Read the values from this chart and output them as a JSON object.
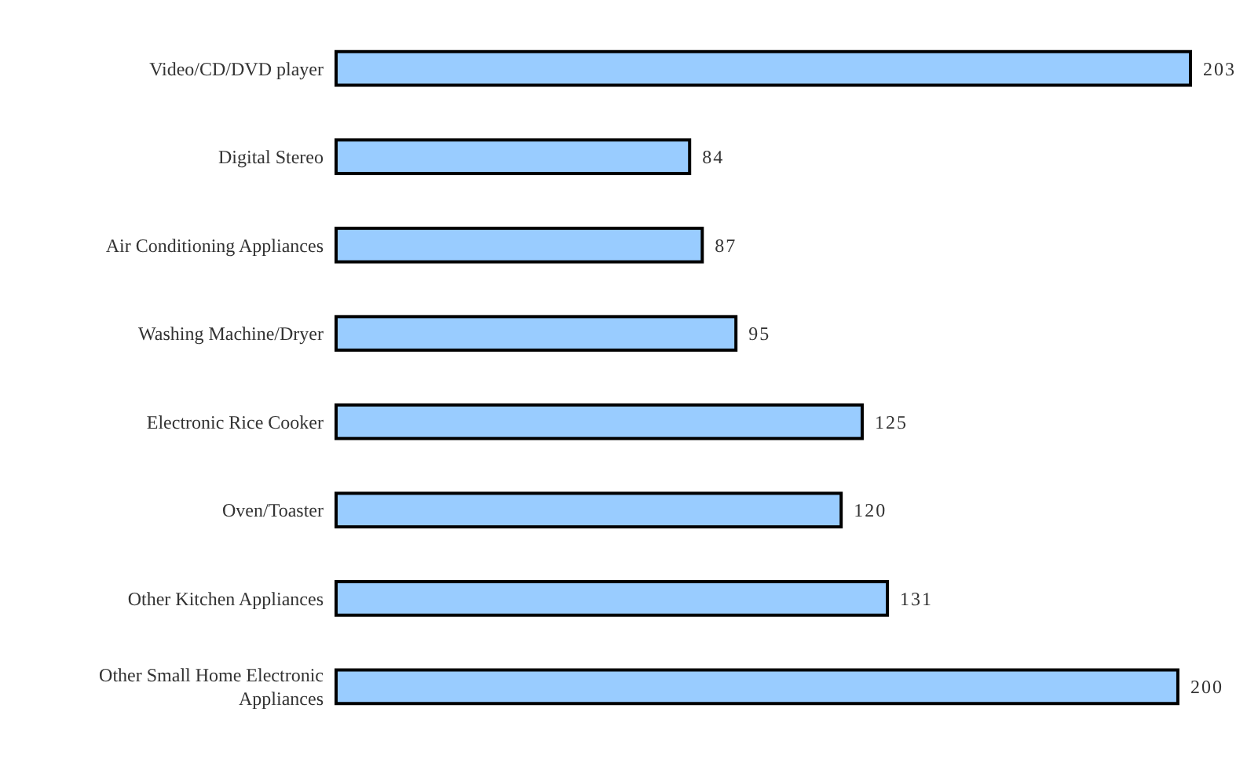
{
  "chart_data": {
    "type": "bar",
    "orientation": "horizontal",
    "categories": [
      "Video/CD/DVD player",
      "Digital Stereo",
      "Air Conditioning Appliances",
      "Washing Machine/Dryer",
      "Electronic Rice Cooker",
      "Oven/Toaster",
      "Other Kitchen Appliances",
      "Other Small Home Electronic Appliances"
    ],
    "values": [
      203,
      84,
      87,
      95,
      125,
      120,
      131,
      200
    ],
    "color": "#99ccff",
    "data_labels": true
  }
}
